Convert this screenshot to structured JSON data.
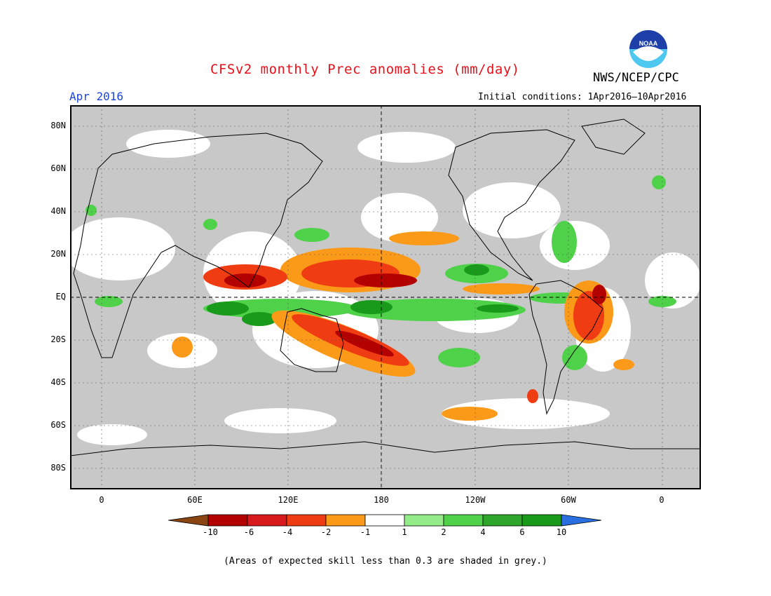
{
  "title": "CFSv2 monthly Prec anomalies (mm/day)",
  "valid_month": "Apr 2016",
  "initial_conditions": "Initial conditions: 1Apr2016–10Apr2016",
  "agency": "NWS/NCEP/CPC",
  "logo_text": "NOAA",
  "lat_labels": [
    "80N",
    "60N",
    "40N",
    "20N",
    "EQ",
    "20S",
    "40S",
    "60S",
    "80S"
  ],
  "lon_labels": [
    "0",
    "60E",
    "120E",
    "180",
    "120W",
    "60W",
    "0"
  ],
  "colorbar": {
    "labels": [
      "-10",
      "-6",
      "-4",
      "-2",
      "-1",
      "1",
      "2",
      "4",
      "6",
      "10"
    ],
    "colors": [
      "#8b4513",
      "#b30000",
      "#d7191c",
      "#f03c12",
      "#fb9a18",
      "#ffffff",
      "#94ec88",
      "#4fd14a",
      "#2ea52b",
      "#1a9a1a",
      "#2a6fe0"
    ]
  },
  "footnote": "(Areas of expected skill less than 0.3 are shaded in grey.)",
  "legend_colors": {
    "grey_low_skill": "#c8c8c8",
    "wet": "#2ea52b",
    "dry": "#d7191c"
  }
}
